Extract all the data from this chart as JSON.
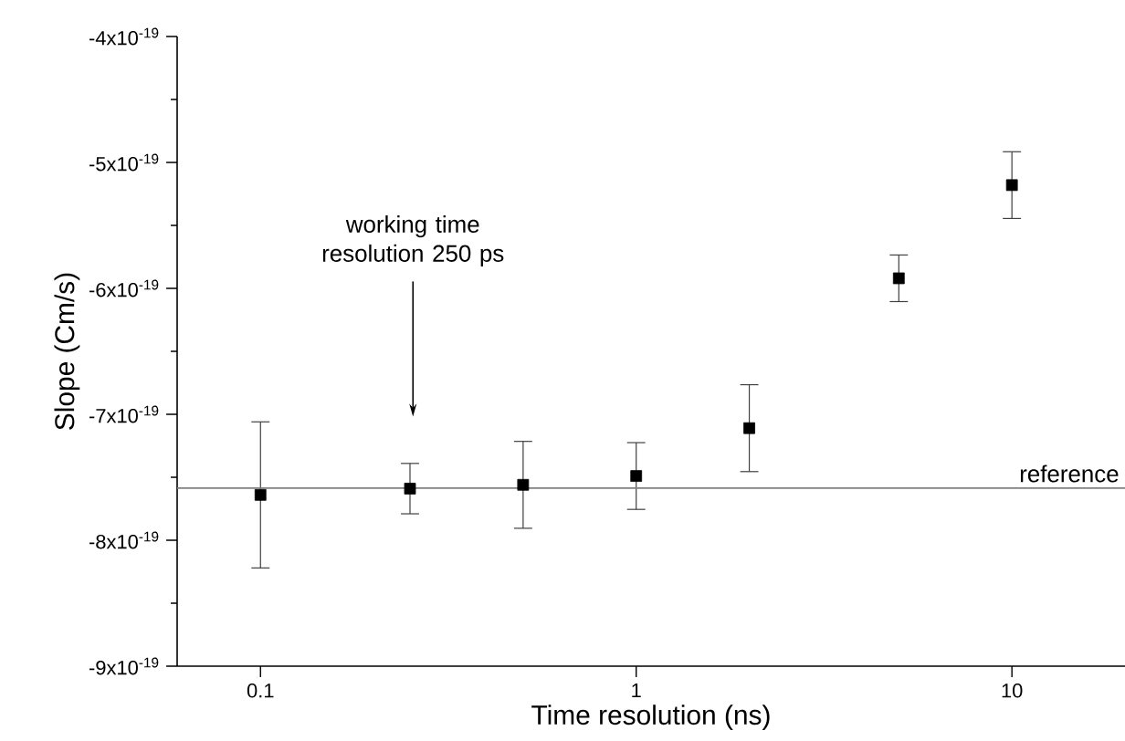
{
  "chart_data": {
    "type": "scatter",
    "xlabel": "Time resolution (ns)",
    "ylabel": "Slope (Cm/s)",
    "x": [
      0.1,
      0.25,
      0.5,
      1,
      2,
      5,
      10
    ],
    "series": [
      {
        "color": "#000000",
        "values": [
          -7.64e-19,
          -7.59e-19,
          -7.56e-19,
          -7.49e-19,
          -7.11e-19,
          -5.92e-19,
          -5.18e-19
        ],
        "errors": [
          5.8e-20,
          2e-20,
          3.45e-20,
          2.65e-20,
          3.45e-20,
          1.85e-20,
          2.65e-20
        ]
      }
    ],
    "log": "x",
    "marker": "square",
    "grid": false,
    "xlim": [
      0.06,
      20
    ],
    "xticks": [
      0.1,
      1,
      10
    ],
    "ylim": [
      -9e-19,
      -4e-19
    ],
    "yticks": [
      {
        "value": -9e-19,
        "label": "-9x10$^{-19}$"
      },
      {
        "value": -8e-19,
        "label": "-8x10$^{-19}$"
      },
      {
        "value": -7e-19,
        "label": "-7x10$^{-19}$"
      },
      {
        "value": -6e-19,
        "label": "-6x10$^{-19}$"
      },
      {
        "value": -5e-19,
        "label": "-5x10$^{-19}$"
      },
      {
        "value": -4e-19,
        "label": "-4x10$^{-19}$"
      }
    ],
    "ref_lines": [
      {
        "axis": "y",
        "value": -7.586e-19,
        "label": "reference",
        "color": "#808080"
      }
    ],
    "annotations": [
      "working time resolution 250 ps"
    ]
  }
}
